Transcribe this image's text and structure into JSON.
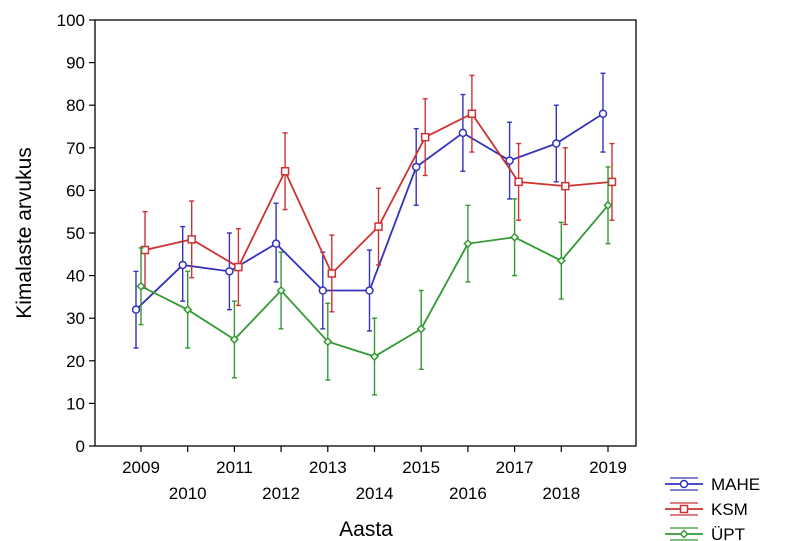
{
  "chart_data": {
    "type": "line",
    "title": "",
    "xlabel": "Aasta",
    "ylabel": "Kimalaste arvukus",
    "ylim": [
      0,
      100
    ],
    "yticks": [
      "0",
      "10",
      "20",
      "30",
      "40",
      "50",
      "60",
      "70",
      "80",
      "90",
      "100"
    ],
    "x": [
      "2009",
      "2010",
      "2011",
      "2012",
      "2013",
      "2014",
      "2015",
      "2016",
      "2017",
      "2018",
      "2019"
    ],
    "error_bars": true,
    "legend_position": "bottom-right",
    "series": [
      {
        "name": "MAHE",
        "color": "#3333bb",
        "marker": "circle",
        "values": [
          32,
          42.5,
          41,
          47.5,
          36.5,
          36.5,
          65.5,
          73.5,
          67,
          71,
          78
        ],
        "lower": [
          23,
          34,
          32,
          38.5,
          27.5,
          27,
          56.5,
          64.5,
          58,
          62,
          69
        ],
        "upper": [
          41,
          51.5,
          50,
          57,
          45.5,
          46,
          74.5,
          82.5,
          76,
          80,
          87.5
        ]
      },
      {
        "name": "KSM",
        "color": "#cc3333",
        "marker": "square",
        "values": [
          46,
          48.5,
          42,
          64.5,
          40.5,
          51.5,
          72.5,
          78,
          62,
          61,
          62
        ],
        "lower": [
          37,
          39.5,
          33,
          55.5,
          31.5,
          42.5,
          63.5,
          69,
          53,
          52,
          53
        ],
        "upper": [
          55,
          57.5,
          51,
          73.5,
          49.5,
          60.5,
          81.5,
          87,
          71,
          70,
          71
        ]
      },
      {
        "name": "ÜPT",
        "color": "#339933",
        "marker": "diamond",
        "values": [
          37.5,
          32,
          25,
          36.5,
          24.5,
          21,
          27.5,
          47.5,
          49,
          43.5,
          56.5
        ],
        "lower": [
          28.5,
          23,
          16,
          27.5,
          15.5,
          12,
          18,
          38.5,
          40,
          34.5,
          47.5
        ],
        "upper": [
          46.5,
          41,
          34,
          45.5,
          33.5,
          30,
          36.5,
          56.5,
          58,
          52.5,
          65.5
        ]
      }
    ]
  }
}
